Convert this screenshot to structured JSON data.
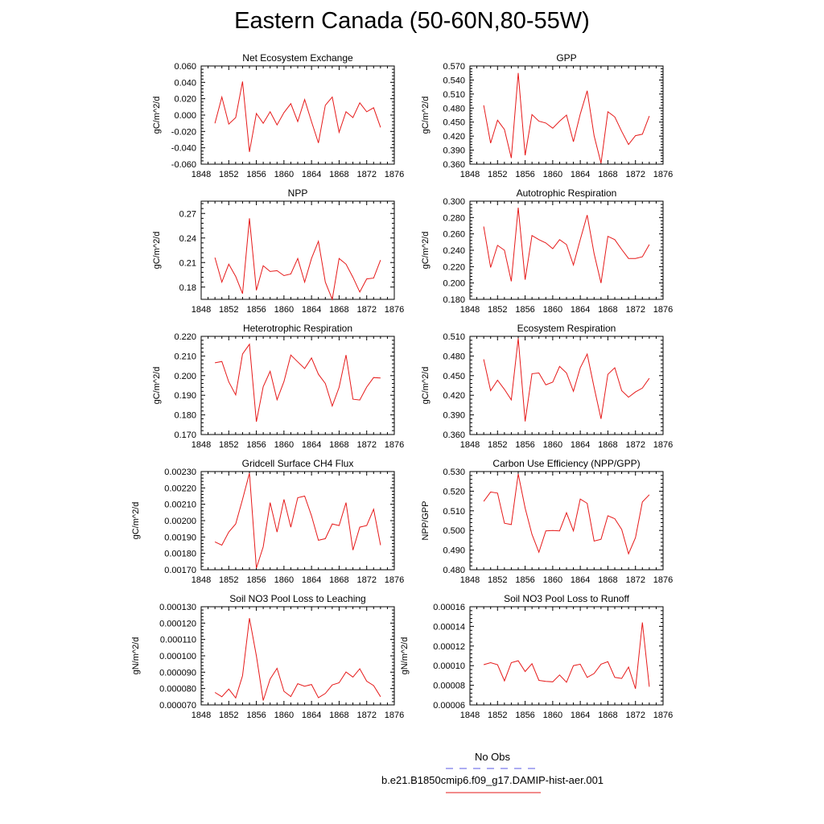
{
  "page_title": "Eastern Canada (50-60N,80-55W)",
  "legend": {
    "obs_label": "No Obs",
    "obs_color": "#5a5ae6",
    "model_label": "b.e21.B1850cmip6.f09_g17.DAMIP-hist-aer.001",
    "model_color": "#e61a1a"
  },
  "chart_data": [
    {
      "type": "line",
      "title": "Net Ecosystem Exchange",
      "ylabel": "gC/m^2/d",
      "xlim": [
        1848,
        1876
      ],
      "xticks": [
        "1848",
        "1852",
        "1856",
        "1860",
        "1864",
        "1868",
        "1872",
        "1876"
      ],
      "ylim": [
        -0.06,
        0.06
      ],
      "yticks": [
        "-0.060",
        "-0.040",
        "-0.020",
        "0.000",
        "0.020",
        "0.040",
        "0.060"
      ],
      "series": [
        {
          "x": [
            1850,
            1851,
            1852,
            1853,
            1854,
            1855,
            1856,
            1857,
            1858,
            1859,
            1860,
            1861,
            1862,
            1863,
            1864,
            1865,
            1866,
            1867,
            1868,
            1869,
            1870,
            1871,
            1872,
            1873,
            1874
          ],
          "y": [
            -0.01,
            0.022,
            -0.011,
            -0.003,
            0.041,
            -0.045,
            0.002,
            -0.01,
            0.004,
            -0.012,
            0.003,
            0.014,
            -0.008,
            0.019,
            -0.008,
            -0.034,
            0.012,
            0.022,
            -0.021,
            0.004,
            -0.003,
            0.015,
            0.004,
            0.009,
            -0.015
          ]
        }
      ]
    },
    {
      "type": "line",
      "title": "GPP",
      "ylabel": "gC/m^2/d",
      "xlim": [
        1848,
        1876
      ],
      "xticks": [
        "1848",
        "1852",
        "1856",
        "1860",
        "1864",
        "1868",
        "1872",
        "1876"
      ],
      "ylim": [
        0.36,
        0.57
      ],
      "yticks": [
        "0.360",
        "0.390",
        "0.420",
        "0.450",
        "0.480",
        "0.510",
        "0.540",
        "0.570"
      ],
      "series": [
        {
          "x": [
            1850,
            1851,
            1852,
            1853,
            1854,
            1855,
            1856,
            1857,
            1858,
            1859,
            1860,
            1861,
            1862,
            1863,
            1864,
            1865,
            1866,
            1867,
            1868,
            1869,
            1870,
            1871,
            1872,
            1873,
            1874
          ],
          "y": [
            0.486,
            0.405,
            0.454,
            0.434,
            0.373,
            0.555,
            0.379,
            0.466,
            0.452,
            0.448,
            0.437,
            0.452,
            0.465,
            0.408,
            0.467,
            0.517,
            0.421,
            0.362,
            0.472,
            0.461,
            0.43,
            0.402,
            0.421,
            0.424,
            0.463
          ]
        }
      ]
    },
    {
      "type": "line",
      "title": "NPP",
      "ylabel": "gC/m^2/d",
      "xlim": [
        1848,
        1876
      ],
      "xticks": [
        "1848",
        "1852",
        "1856",
        "1860",
        "1864",
        "1868",
        "1872",
        "1876"
      ],
      "ylim": [
        0.165,
        0.285
      ],
      "yticks": [
        "0.18",
        "0.21",
        "0.24",
        "0.27"
      ],
      "series": [
        {
          "x": [
            1850,
            1851,
            1852,
            1853,
            1854,
            1855,
            1856,
            1857,
            1858,
            1859,
            1860,
            1861,
            1862,
            1863,
            1864,
            1865,
            1866,
            1867,
            1868,
            1869,
            1870,
            1871,
            1872,
            1873,
            1874
          ],
          "y": [
            0.216,
            0.186,
            0.208,
            0.193,
            0.172,
            0.264,
            0.176,
            0.206,
            0.199,
            0.2,
            0.194,
            0.196,
            0.215,
            0.186,
            0.215,
            0.236,
            0.186,
            0.165,
            0.215,
            0.208,
            0.192,
            0.174,
            0.19,
            0.191,
            0.213
          ]
        }
      ]
    },
    {
      "type": "line",
      "title": "Autotrophic Respiration",
      "ylabel": "gC/m^2/d",
      "xlim": [
        1848,
        1876
      ],
      "xticks": [
        "1848",
        "1852",
        "1856",
        "1860",
        "1864",
        "1868",
        "1872",
        "1876"
      ],
      "ylim": [
        0.18,
        0.3
      ],
      "yticks": [
        "0.180",
        "0.200",
        "0.220",
        "0.240",
        "0.260",
        "0.280",
        "0.300"
      ],
      "series": [
        {
          "x": [
            1850,
            1851,
            1852,
            1853,
            1854,
            1855,
            1856,
            1857,
            1858,
            1859,
            1860,
            1861,
            1862,
            1863,
            1864,
            1865,
            1866,
            1867,
            1868,
            1869,
            1870,
            1871,
            1872,
            1873,
            1874
          ],
          "y": [
            0.269,
            0.219,
            0.246,
            0.24,
            0.202,
            0.292,
            0.204,
            0.258,
            0.253,
            0.249,
            0.242,
            0.253,
            0.247,
            0.222,
            0.253,
            0.283,
            0.236,
            0.2,
            0.257,
            0.253,
            0.241,
            0.23,
            0.23,
            0.232,
            0.247
          ]
        }
      ]
    },
    {
      "type": "line",
      "title": "Heterotrophic Respiration",
      "ylabel": "gC/m^2/d",
      "xlim": [
        1848,
        1876
      ],
      "xticks": [
        "1848",
        "1852",
        "1856",
        "1860",
        "1864",
        "1868",
        "1872",
        "1876"
      ],
      "ylim": [
        0.17,
        0.22
      ],
      "yticks": [
        "0.170",
        "0.180",
        "0.190",
        "0.200",
        "0.210",
        "0.220"
      ],
      "series": [
        {
          "x": [
            1850,
            1851,
            1852,
            1853,
            1854,
            1855,
            1856,
            1857,
            1858,
            1859,
            1860,
            1861,
            1862,
            1863,
            1864,
            1865,
            1866,
            1867,
            1868,
            1869,
            1870,
            1871,
            1872,
            1873,
            1874
          ],
          "y": [
            0.2065,
            0.2072,
            0.1968,
            0.1902,
            0.211,
            0.216,
            0.1765,
            0.1944,
            0.2022,
            0.1877,
            0.197,
            0.2105,
            0.207,
            0.2036,
            0.209,
            0.2007,
            0.196,
            0.1845,
            0.194,
            0.2105,
            0.188,
            0.1876,
            0.1942,
            0.199,
            0.1988
          ]
        }
      ]
    },
    {
      "type": "line",
      "title": "Ecosystem Respiration",
      "ylabel": "gC/m^2/d",
      "xlim": [
        1848,
        1876
      ],
      "xticks": [
        "1848",
        "1852",
        "1856",
        "1860",
        "1864",
        "1868",
        "1872",
        "1876"
      ],
      "ylim": [
        0.36,
        0.51
      ],
      "yticks": [
        "0.360",
        "0.390",
        "0.420",
        "0.450",
        "0.480",
        "0.510"
      ],
      "series": [
        {
          "x": [
            1850,
            1851,
            1852,
            1853,
            1854,
            1855,
            1856,
            1857,
            1858,
            1859,
            1860,
            1861,
            1862,
            1863,
            1864,
            1865,
            1866,
            1867,
            1868,
            1869,
            1870,
            1871,
            1872,
            1873,
            1874
          ],
          "y": [
            0.475,
            0.427,
            0.443,
            0.429,
            0.413,
            0.507,
            0.38,
            0.453,
            0.454,
            0.436,
            0.44,
            0.464,
            0.454,
            0.426,
            0.462,
            0.483,
            0.432,
            0.384,
            0.452,
            0.462,
            0.427,
            0.417,
            0.425,
            0.431,
            0.446
          ]
        }
      ]
    },
    {
      "type": "line",
      "title": "Gridcell Surface CH4 Flux",
      "ylabel": "gC/m^2/d",
      "xlim": [
        1848,
        1876
      ],
      "xticks": [
        "1848",
        "1852",
        "1856",
        "1860",
        "1864",
        "1868",
        "1872",
        "1876"
      ],
      "ylim": [
        0.0017,
        0.0023
      ],
      "yticks": [
        "0.00170",
        "0.00180",
        "0.00190",
        "0.00200",
        "0.00210",
        "0.00220",
        "0.00230"
      ],
      "series": [
        {
          "x": [
            1850,
            1851,
            1852,
            1853,
            1854,
            1855,
            1856,
            1857,
            1858,
            1859,
            1860,
            1861,
            1862,
            1863,
            1864,
            1865,
            1866,
            1867,
            1868,
            1869,
            1870,
            1871,
            1872,
            1873,
            1874
          ],
          "y": [
            0.00187,
            0.00185,
            0.00193,
            0.00198,
            0.00213,
            0.00229,
            0.00171,
            0.00184,
            0.00211,
            0.00193,
            0.00213,
            0.00196,
            0.00214,
            0.00215,
            0.00203,
            0.00188,
            0.00189,
            0.00198,
            0.00197,
            0.00211,
            0.00182,
            0.00196,
            0.00197,
            0.00207,
            0.00185
          ]
        }
      ]
    },
    {
      "type": "line",
      "title": "Carbon Use Efficiency (NPP/GPP)",
      "ylabel": "NPP/GPP",
      "xlim": [
        1848,
        1876
      ],
      "xticks": [
        "1848",
        "1852",
        "1856",
        "1860",
        "1864",
        "1868",
        "1872",
        "1876"
      ],
      "ylim": [
        0.48,
        0.53
      ],
      "yticks": [
        "0.480",
        "0.490",
        "0.500",
        "0.510",
        "0.520",
        "0.530"
      ],
      "series": [
        {
          "x": [
            1850,
            1851,
            1852,
            1853,
            1854,
            1855,
            1856,
            1857,
            1858,
            1859,
            1860,
            1861,
            1862,
            1863,
            1864,
            1865,
            1866,
            1867,
            1868,
            1869,
            1870,
            1871,
            1872,
            1873,
            1874
          ],
          "y": [
            0.5148,
            0.5196,
            0.519,
            0.5037,
            0.503,
            0.5288,
            0.5114,
            0.498,
            0.4889,
            0.4998,
            0.5,
            0.4998,
            0.509,
            0.4998,
            0.516,
            0.5138,
            0.4946,
            0.4955,
            0.5075,
            0.506,
            0.5005,
            0.4881,
            0.4963,
            0.5145,
            0.5182
          ]
        }
      ]
    },
    {
      "type": "line",
      "title": "Soil NO3 Pool Loss to Leaching",
      "ylabel": "gN/m^2/d",
      "xlim": [
        1848,
        1876
      ],
      "xticks": [
        "1848",
        "1852",
        "1856",
        "1860",
        "1864",
        "1868",
        "1872",
        "1876"
      ],
      "ylim": [
        7e-05,
        0.00013
      ],
      "yticks": [
        "0.000070",
        "0.000080",
        "0.000090",
        "0.000100",
        "0.000110",
        "0.000120",
        "0.000130"
      ],
      "series": [
        {
          "x": [
            1850,
            1851,
            1852,
            1853,
            1854,
            1855,
            1856,
            1857,
            1858,
            1859,
            1860,
            1861,
            1862,
            1863,
            1864,
            1865,
            1866,
            1867,
            1868,
            1869,
            1870,
            1871,
            1872,
            1873,
            1874
          ],
          "y": [
            7.76e-05,
            7.5e-05,
            7.97e-05,
            7.43e-05,
            8.78e-05,
            0.000123,
            0.0001,
            7.27e-05,
            8.58e-05,
            9.24e-05,
            7.83e-05,
            7.51e-05,
            8.3e-05,
            8.14e-05,
            8.25e-05,
            7.44e-05,
            7.7e-05,
            8.22e-05,
            8.35e-05,
            9.01e-05,
            8.7e-05,
            9.21e-05,
            8.45e-05,
            8.18e-05,
            7.5e-05
          ]
        }
      ]
    },
    {
      "type": "line",
      "title": "Soil NO3 Pool Loss to Runoff",
      "ylabel": "gN/m^2/d",
      "xlim": [
        1848,
        1876
      ],
      "xticks": [
        "1848",
        "1852",
        "1856",
        "1860",
        "1864",
        "1868",
        "1872",
        "1876"
      ],
      "ylim": [
        6e-05,
        0.00016
      ],
      "yticks": [
        "0.00006",
        "0.00008",
        "0.00010",
        "0.00012",
        "0.00014",
        "0.00016"
      ],
      "series": [
        {
          "x": [
            1850,
            1851,
            1852,
            1853,
            1854,
            1855,
            1856,
            1857,
            1858,
            1859,
            1860,
            1861,
            1862,
            1863,
            1864,
            1865,
            1866,
            1867,
            1868,
            1869,
            1870,
            1871,
            1872,
            1873,
            1874
          ],
          "y": [
            0.000101,
            0.000103,
            0.000101,
            8.45e-05,
            0.000103,
            0.000105,
            9.4e-05,
            0.000102,
            8.5e-05,
            8.4e-05,
            8.35e-05,
            9.05e-05,
            8.3e-05,
            0.0001,
            0.0001015,
            8.8e-05,
            9.2e-05,
            0.0001015,
            0.000104,
            8.8e-05,
            8.7e-05,
            9.85e-05,
            7.65e-05,
            0.000144,
            7.85e-05
          ]
        }
      ]
    }
  ]
}
